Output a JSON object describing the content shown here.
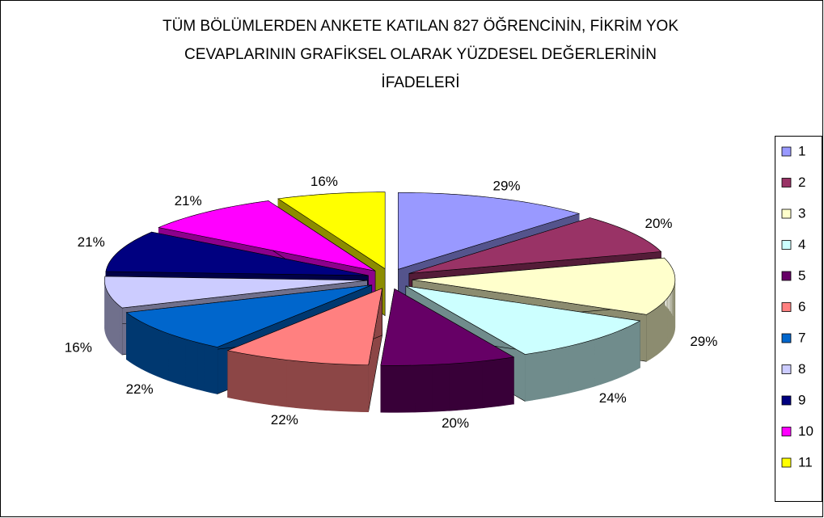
{
  "chart_data": {
    "type": "pie3d",
    "title": [
      "TÜM BÖLÜMLERDEN ANKETE KATILAN 827 ÖĞRENCİNİN, FİKRİM YOK",
      "CEVAPLARININ GRAFİKSEL OLARAK YÜZDESEL DEĞERLERİNİN",
      "İFADELERİ"
    ],
    "categories": [
      "1",
      "2",
      "3",
      "4",
      "5",
      "6",
      "7",
      "8",
      "9",
      "10",
      "11"
    ],
    "values": [
      29,
      20,
      29,
      24,
      20,
      22,
      22,
      16,
      21,
      21,
      16
    ],
    "value_labels": [
      "29%",
      "20%",
      "29%",
      "24%",
      "20%",
      "22%",
      "22%",
      "16%",
      "21%",
      "21%",
      "16%"
    ],
    "colors": [
      "#9999ff",
      "#993366",
      "#ffffcc",
      "#ccffff",
      "#660066",
      "#ff8080",
      "#0066cc",
      "#ccccff",
      "#000080",
      "#ff00ff",
      "#ffff00"
    ],
    "legend": "right"
  }
}
